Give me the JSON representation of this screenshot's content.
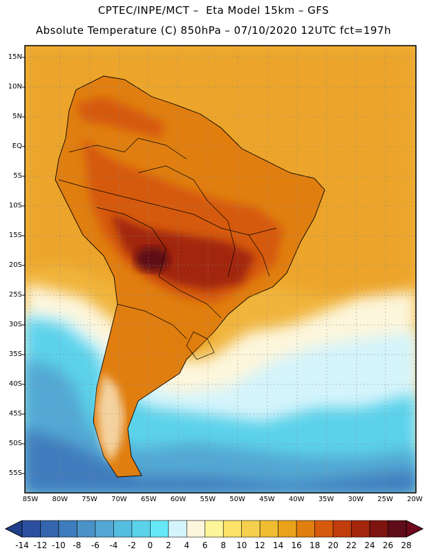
{
  "header": {
    "line1": "CPTEC/INPE/MCT –  Eta Model 15km – GFS",
    "line2": "Absolute Temperature (C) 850hPa – 07/10/2020 12UTC fct=197h"
  },
  "map": {
    "lat_labels": [
      "15N",
      "10N",
      "5N",
      "EQ",
      "5S",
      "10S",
      "15S",
      "20S",
      "25S",
      "30S",
      "35S",
      "40S",
      "45S",
      "50S",
      "55S"
    ],
    "lon_labels": [
      "85W",
      "80W",
      "75W",
      "70W",
      "65W",
      "60W",
      "55W",
      "50W",
      "45W",
      "40W",
      "35W",
      "30W",
      "25W",
      "20W"
    ],
    "ocean_color": "#f0b43c"
  },
  "colorbar": {
    "labels": [
      "-14",
      "-12",
      "-10",
      "-8",
      "-6",
      "-4",
      "-2",
      "0",
      "2",
      "4",
      "6",
      "8",
      "10",
      "12",
      "14",
      "16",
      "18",
      "20",
      "22",
      "24",
      "26",
      "28"
    ],
    "colors": [
      "#2c4f9e",
      "#3565ad",
      "#3f7cbd",
      "#4a93c8",
      "#52a8d3",
      "#55bde0",
      "#5bd2ea",
      "#66e8f6",
      "#d4f4fb",
      "#fdf6dc",
      "#fdf59a",
      "#fbe368",
      "#f5d04e",
      "#f0bd32",
      "#eaa21b",
      "#e07e10",
      "#d65a0c",
      "#c13d0c",
      "#a2260c",
      "#7e1410",
      "#5e0c18"
    ]
  }
}
